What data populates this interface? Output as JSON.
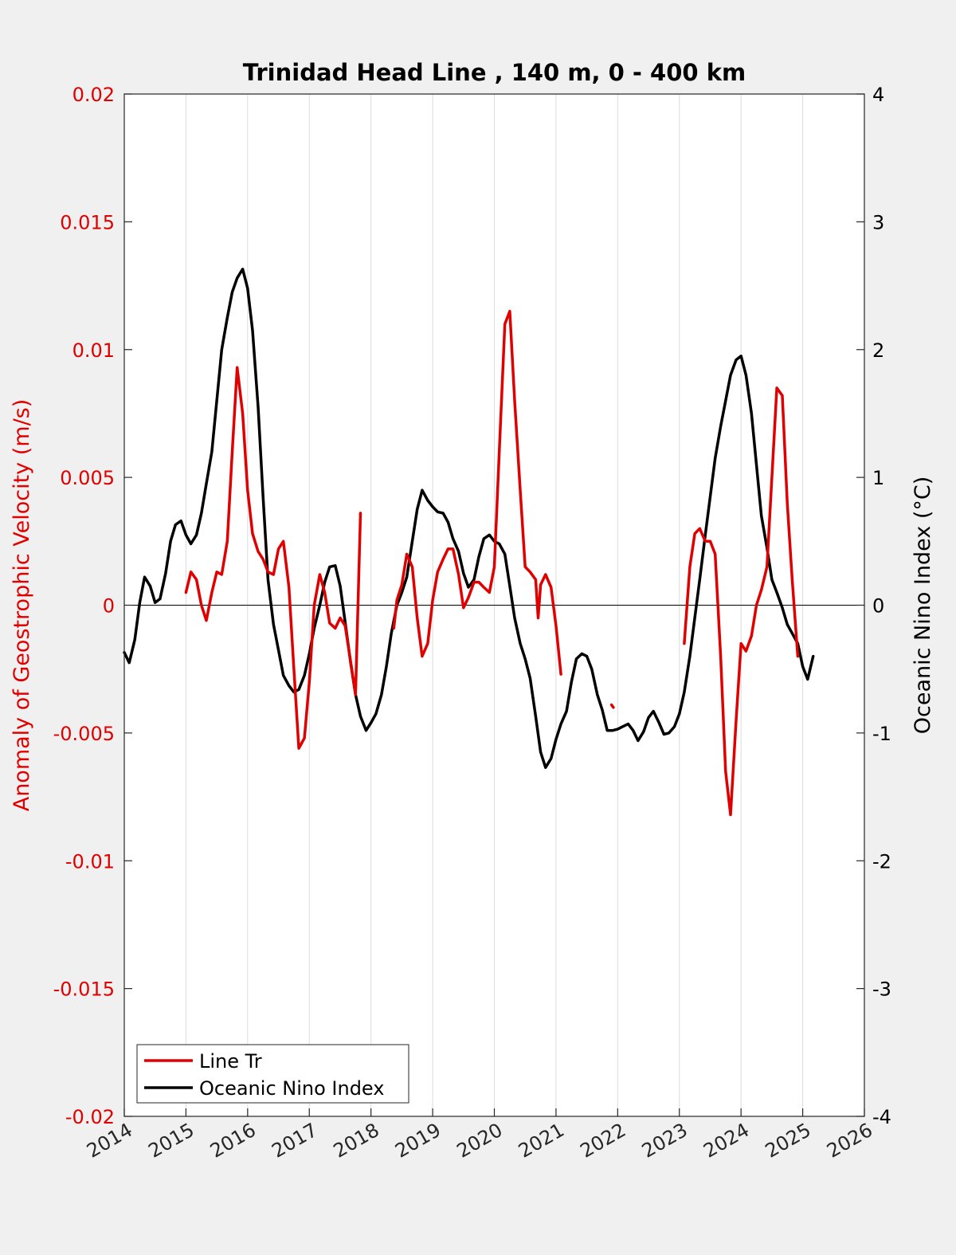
{
  "chart_data": {
    "type": "line",
    "title": "Trinidad Head Line , 140 m, 0 - 400 km",
    "xlabel": "",
    "x_ticks": [
      "2014",
      "2015",
      "2016",
      "2017",
      "2018",
      "2019",
      "2020",
      "2021",
      "2022",
      "2023",
      "2024",
      "2025",
      "2026"
    ],
    "xlim": [
      2014,
      2026
    ],
    "y_left": {
      "label": "Anomaly of Geostrophic Velocity (m/s)",
      "ylim": [
        -0.02,
        0.02
      ],
      "ticks": [
        "0.02",
        "0.015",
        "0.01",
        "0.005",
        "0",
        "-0.005",
        "-0.01",
        "-0.015",
        "-0.02"
      ],
      "color": "#e00000"
    },
    "y_right": {
      "label": "Oceanic Nino Index (°C)",
      "ylim": [
        -4,
        4
      ],
      "ticks": [
        "4",
        "3",
        "2",
        "1",
        "0",
        "-1",
        "-2",
        "-3",
        "-4"
      ],
      "color": "#000000"
    },
    "grid": "x-only",
    "zero_line": true,
    "legend_position": "bottom-left",
    "series": [
      {
        "name": "Line Tr",
        "axis": "left",
        "color": "#e00000",
        "segments": [
          [
            [
              2015.0,
              0.0005
            ],
            [
              2015.08,
              0.0013
            ],
            [
              2015.17,
              0.001
            ],
            [
              2015.25,
              0.0
            ],
            [
              2015.33,
              -0.0006
            ],
            [
              2015.42,
              0.0005
            ],
            [
              2015.5,
              0.0013
            ],
            [
              2015.58,
              0.0012
            ],
            [
              2015.67,
              0.0025
            ],
            [
              2015.75,
              0.006
            ],
            [
              2015.83,
              0.0093
            ],
            [
              2015.92,
              0.0075
            ],
            [
              2016.0,
              0.0045
            ],
            [
              2016.08,
              0.0028
            ],
            [
              2016.17,
              0.0021
            ],
            [
              2016.25,
              0.0018
            ],
            [
              2016.33,
              0.0013
            ],
            [
              2016.42,
              0.0012
            ],
            [
              2016.5,
              0.0022
            ],
            [
              2016.58,
              0.0025
            ],
            [
              2016.67,
              0.0007
            ],
            [
              2016.75,
              -0.0025
            ],
            [
              2016.83,
              -0.0056
            ],
            [
              2016.92,
              -0.0052
            ],
            [
              2017.0,
              -0.003
            ],
            [
              2017.08,
              0.0
            ],
            [
              2017.17,
              0.0012
            ],
            [
              2017.25,
              0.0005
            ],
            [
              2017.33,
              -0.0007
            ],
            [
              2017.42,
              -0.0009
            ],
            [
              2017.5,
              -0.0005
            ],
            [
              2017.58,
              -0.0008
            ],
            [
              2017.67,
              -0.0022
            ],
            [
              2017.75,
              -0.0035
            ],
            [
              2017.83,
              0.0036
            ]
          ],
          [
            [
              2018.37,
              -0.0009
            ],
            [
              2018.42,
              0.0002
            ],
            [
              2018.5,
              0.0008
            ],
            [
              2018.58,
              0.002
            ],
            [
              2018.67,
              0.0015
            ],
            [
              2018.75,
              -0.0005
            ],
            [
              2018.83,
              -0.002
            ],
            [
              2018.92,
              -0.0015
            ],
            [
              2019.0,
              0.0002
            ],
            [
              2019.08,
              0.0013
            ],
            [
              2019.17,
              0.0018
            ],
            [
              2019.25,
              0.0022
            ],
            [
              2019.33,
              0.0022
            ],
            [
              2019.42,
              0.0012
            ],
            [
              2019.5,
              -0.0001
            ],
            [
              2019.58,
              0.0003
            ],
            [
              2019.67,
              0.0009
            ],
            [
              2019.75,
              0.0009
            ],
            [
              2019.83,
              0.0007
            ],
            [
              2019.92,
              0.0005
            ],
            [
              2020.0,
              0.0015
            ],
            [
              2020.08,
              0.006
            ],
            [
              2020.17,
              0.011
            ],
            [
              2020.25,
              0.0115
            ],
            [
              2020.33,
              0.008
            ],
            [
              2020.42,
              0.0045
            ],
            [
              2020.5,
              0.0015
            ],
            [
              2020.58,
              0.0013
            ],
            [
              2020.67,
              0.001
            ],
            [
              2020.71,
              -0.0005
            ],
            [
              2020.75,
              0.0008
            ],
            [
              2020.83,
              0.0012
            ],
            [
              2020.92,
              0.0007
            ],
            [
              2021.0,
              -0.0008
            ],
            [
              2021.08,
              -0.0027
            ]
          ],
          [
            [
              2021.9,
              -0.0039
            ],
            [
              2021.93,
              -0.004
            ]
          ],
          [
            [
              2023.08,
              -0.0015
            ],
            [
              2023.17,
              0.0015
            ],
            [
              2023.25,
              0.0028
            ],
            [
              2023.33,
              0.003
            ],
            [
              2023.42,
              0.0025
            ],
            [
              2023.5,
              0.0025
            ],
            [
              2023.58,
              0.002
            ],
            [
              2023.67,
              -0.002
            ],
            [
              2023.75,
              -0.0065
            ],
            [
              2023.83,
              -0.0082
            ],
            [
              2023.92,
              -0.0045
            ],
            [
              2024.0,
              -0.0015
            ],
            [
              2024.08,
              -0.0018
            ],
            [
              2024.17,
              -0.0012
            ],
            [
              2024.25,
              0.0
            ],
            [
              2024.33,
              0.0006
            ],
            [
              2024.42,
              0.0015
            ],
            [
              2024.5,
              0.005
            ],
            [
              2024.58,
              0.0085
            ],
            [
              2024.67,
              0.0082
            ],
            [
              2024.75,
              0.004
            ],
            [
              2024.83,
              0.001
            ],
            [
              2024.92,
              -0.002
            ]
          ]
        ]
      },
      {
        "name": "Oceanic Nino Index",
        "axis": "right",
        "color": "#000000",
        "segments": [
          [
            [
              2014.0,
              -0.37
            ],
            [
              2014.08,
              -0.45
            ],
            [
              2014.17,
              -0.27
            ],
            [
              2014.25,
              0.02
            ],
            [
              2014.33,
              0.22
            ],
            [
              2014.42,
              0.15
            ],
            [
              2014.5,
              0.02
            ],
            [
              2014.58,
              0.05
            ],
            [
              2014.67,
              0.25
            ],
            [
              2014.75,
              0.5
            ],
            [
              2014.83,
              0.63
            ],
            [
              2014.92,
              0.66
            ],
            [
              2015.0,
              0.55
            ],
            [
              2015.08,
              0.48
            ],
            [
              2015.17,
              0.55
            ],
            [
              2015.25,
              0.72
            ],
            [
              2015.33,
              0.95
            ],
            [
              2015.42,
              1.2
            ],
            [
              2015.5,
              1.6
            ],
            [
              2015.58,
              2.0
            ],
            [
              2015.67,
              2.25
            ],
            [
              2015.75,
              2.45
            ],
            [
              2015.83,
              2.56
            ],
            [
              2015.92,
              2.63
            ],
            [
              2016.0,
              2.48
            ],
            [
              2016.08,
              2.15
            ],
            [
              2016.17,
              1.55
            ],
            [
              2016.25,
              0.85
            ],
            [
              2016.33,
              0.2
            ],
            [
              2016.42,
              -0.15
            ],
            [
              2016.5,
              -0.35
            ],
            [
              2016.58,
              -0.55
            ],
            [
              2016.67,
              -0.63
            ],
            [
              2016.75,
              -0.68
            ],
            [
              2016.83,
              -0.66
            ],
            [
              2016.92,
              -0.55
            ],
            [
              2017.0,
              -0.38
            ],
            [
              2017.08,
              -0.18
            ],
            [
              2017.17,
              0.0
            ],
            [
              2017.25,
              0.18
            ],
            [
              2017.33,
              0.3
            ],
            [
              2017.42,
              0.31
            ],
            [
              2017.5,
              0.15
            ],
            [
              2017.58,
              -0.13
            ],
            [
              2017.67,
              -0.45
            ],
            [
              2017.75,
              -0.7
            ],
            [
              2017.83,
              -0.87
            ],
            [
              2017.92,
              -0.98
            ],
            [
              2018.0,
              -0.92
            ],
            [
              2018.08,
              -0.85
            ],
            [
              2018.17,
              -0.7
            ],
            [
              2018.25,
              -0.48
            ],
            [
              2018.33,
              -0.22
            ],
            [
              2018.42,
              0.0
            ],
            [
              2018.5,
              0.1
            ],
            [
              2018.58,
              0.22
            ],
            [
              2018.67,
              0.5
            ],
            [
              2018.75,
              0.75
            ],
            [
              2018.83,
              0.9
            ],
            [
              2018.92,
              0.82
            ],
            [
              2019.0,
              0.77
            ],
            [
              2019.08,
              0.73
            ],
            [
              2019.17,
              0.72
            ],
            [
              2019.25,
              0.65
            ],
            [
              2019.33,
              0.52
            ],
            [
              2019.42,
              0.42
            ],
            [
              2019.5,
              0.25
            ],
            [
              2019.58,
              0.14
            ],
            [
              2019.67,
              0.2
            ],
            [
              2019.75,
              0.38
            ],
            [
              2019.83,
              0.52
            ],
            [
              2019.92,
              0.55
            ],
            [
              2020.0,
              0.5
            ],
            [
              2020.08,
              0.48
            ],
            [
              2020.17,
              0.4
            ],
            [
              2020.25,
              0.15
            ],
            [
              2020.33,
              -0.1
            ],
            [
              2020.42,
              -0.3
            ],
            [
              2020.5,
              -0.42
            ],
            [
              2020.58,
              -0.57
            ],
            [
              2020.67,
              -0.87
            ],
            [
              2020.75,
              -1.15
            ],
            [
              2020.83,
              -1.27
            ],
            [
              2020.92,
              -1.2
            ],
            [
              2021.0,
              -1.05
            ],
            [
              2021.08,
              -0.93
            ],
            [
              2021.17,
              -0.83
            ],
            [
              2021.25,
              -0.6
            ],
            [
              2021.33,
              -0.42
            ],
            [
              2021.42,
              -0.38
            ],
            [
              2021.5,
              -0.4
            ],
            [
              2021.58,
              -0.5
            ],
            [
              2021.67,
              -0.7
            ],
            [
              2021.75,
              -0.82
            ],
            [
              2021.83,
              -0.98
            ],
            [
              2021.92,
              -0.98
            ],
            [
              2022.0,
              -0.97
            ],
            [
              2022.08,
              -0.95
            ],
            [
              2022.17,
              -0.93
            ],
            [
              2022.25,
              -0.98
            ],
            [
              2022.33,
              -1.06
            ],
            [
              2022.42,
              -0.99
            ],
            [
              2022.5,
              -0.88
            ],
            [
              2022.58,
              -0.83
            ],
            [
              2022.67,
              -0.92
            ],
            [
              2022.75,
              -1.01
            ],
            [
              2022.83,
              -1.0
            ],
            [
              2022.92,
              -0.95
            ],
            [
              2023.0,
              -0.85
            ],
            [
              2023.08,
              -0.68
            ],
            [
              2023.17,
              -0.4
            ],
            [
              2023.25,
              -0.1
            ],
            [
              2023.33,
              0.2
            ],
            [
              2023.42,
              0.55
            ],
            [
              2023.5,
              0.85
            ],
            [
              2023.58,
              1.15
            ],
            [
              2023.67,
              1.4
            ],
            [
              2023.75,
              1.6
            ],
            [
              2023.83,
              1.8
            ],
            [
              2023.92,
              1.92
            ],
            [
              2024.0,
              1.95
            ],
            [
              2024.08,
              1.8
            ],
            [
              2024.17,
              1.5
            ],
            [
              2024.25,
              1.1
            ],
            [
              2024.33,
              0.7
            ],
            [
              2024.42,
              0.45
            ],
            [
              2024.5,
              0.2
            ],
            [
              2024.58,
              0.1
            ],
            [
              2024.67,
              -0.02
            ],
            [
              2024.75,
              -0.15
            ],
            [
              2024.83,
              -0.22
            ],
            [
              2024.92,
              -0.3
            ],
            [
              2025.0,
              -0.48
            ],
            [
              2025.08,
              -0.58
            ],
            [
              2025.17,
              -0.4
            ]
          ]
        ]
      }
    ]
  }
}
